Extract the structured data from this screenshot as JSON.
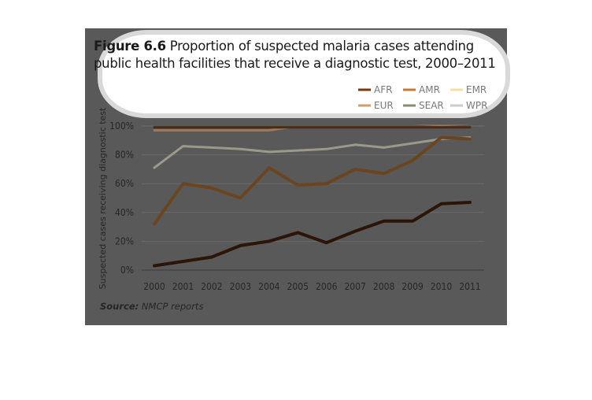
{
  "figure": {
    "title_bold": "Figure 6.6",
    "title_rest": "Proportion of suspected malaria cases attending public health facilities that receive a diagnostic test, 2000–2011",
    "source_label": "Source:",
    "source_text": "NMCP reports",
    "background": "#595959"
  },
  "chart_data": {
    "type": "line",
    "title": "Proportion of suspected malaria cases attending public health facilities that receive a diagnostic test, 2000–2011",
    "xlabel": "",
    "ylabel": "Suspected cases receiving diagnostic test",
    "x": [
      "2000",
      "2001",
      "2002",
      "2003",
      "2004",
      "2005",
      "2006",
      "2007",
      "2008",
      "2009",
      "2010",
      "2011"
    ],
    "y_ticks": [
      "0%",
      "20%",
      "40%",
      "60%",
      "80%",
      "100%"
    ],
    "ylim": [
      0,
      100
    ],
    "grid": "horizontal",
    "legend_position": "top-right",
    "series": [
      {
        "name": "AFR",
        "color": "#2a1508",
        "values": [
          3,
          6,
          9,
          17,
          20,
          26,
          19,
          27,
          34,
          34,
          46,
          47
        ]
      },
      {
        "name": "AMR",
        "color": "#6b4520",
        "values": [
          32,
          60,
          57,
          50,
          71,
          59,
          60,
          70,
          67,
          76,
          92,
          91
        ]
      },
      {
        "name": "EMR",
        "color": "#9a9a8a",
        "values": [
          71,
          86,
          85,
          84,
          82,
          83,
          84,
          87,
          85,
          88,
          91,
          92
        ]
      },
      {
        "name": "EUR",
        "color": "#9a7a5a",
        "values": [
          97,
          97,
          97,
          97,
          97,
          100,
          100,
          100,
          100,
          100,
          100,
          100
        ]
      },
      {
        "name": "SEAR",
        "color": "#5a5a50",
        "values": [
          100,
          100,
          100,
          100,
          100,
          100,
          100,
          100,
          100,
          100,
          99,
          100
        ]
      },
      {
        "name": "WPR",
        "color": "#4a2a18",
        "values": [
          99,
          99,
          99,
          99,
          99,
          99,
          99,
          99,
          99,
          99,
          99,
          99
        ]
      }
    ],
    "legend_colors": {
      "AFR": "#7a3a10",
      "AMR": "#c97a30",
      "EMR": "#f2e0a0",
      "EUR": "#c9a070",
      "SEAR": "#8a8a7a",
      "WPR": "#cccccc"
    }
  }
}
